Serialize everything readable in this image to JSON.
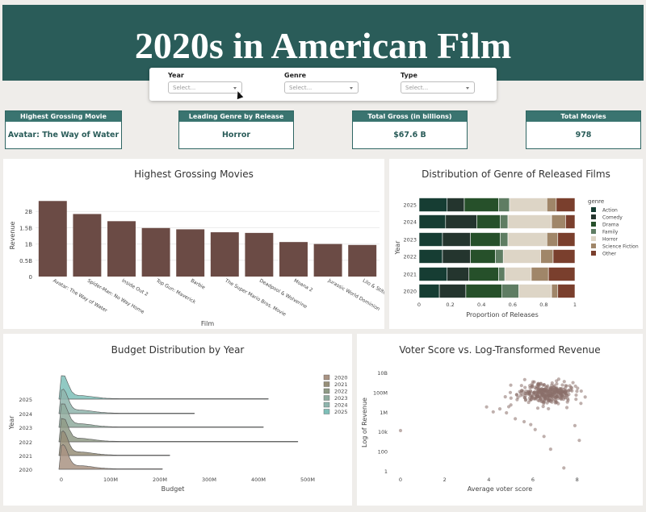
{
  "header": {
    "title": "2020s in American Film"
  },
  "filters": [
    {
      "label": "Year",
      "placeholder": "Select..."
    },
    {
      "label": "Genre",
      "placeholder": "Select..."
    },
    {
      "label": "Type",
      "placeholder": "Select..."
    }
  ],
  "cards": [
    {
      "title": "Highest Grossing Movie",
      "value": "Avatar: The Way of Water"
    },
    {
      "title": "Leading Genre by Release Count",
      "value": "Horror"
    },
    {
      "title": "Total Gross (in billions)",
      "value": "$67.6 B"
    },
    {
      "title": "Total Movies",
      "value": "978"
    }
  ],
  "colors": {
    "header": "#2a5c59",
    "bar": "#6b4b45"
  },
  "chart_data": [
    {
      "type": "bar",
      "title": "Highest Grossing Movies",
      "xlabel": "Film",
      "ylabel": "Revenue",
      "categories": [
        "Avatar: The Way of Water",
        "Spider-Man: No Way Home",
        "Inside Out 2",
        "Top Gun: Maverick",
        "Barbie",
        "The Super Mario Bros. Movie",
        "Deadpool & Wolverine",
        "Moana 2",
        "Jurassic World Dominion",
        "Lilo & Stitch"
      ],
      "values": [
        2.32,
        1.92,
        1.7,
        1.49,
        1.45,
        1.36,
        1.34,
        1.06,
        1.0,
        0.97
      ],
      "value_unit": "billions",
      "yticks": [
        "0",
        "0.5B",
        "1B",
        "1.5B",
        "2B"
      ],
      "ylim": [
        0,
        2.5
      ]
    },
    {
      "type": "bar",
      "stacked": true,
      "orientation": "horizontal",
      "title": "Distribution of Genre of Released Films",
      "xlabel": "Proportion of Releases",
      "ylabel": "Year",
      "legend_title": "genre",
      "categories": [
        "2020",
        "2021",
        "2022",
        "2023",
        "2024",
        "2025"
      ],
      "series": [
        {
          "name": "Action",
          "color": "#163d33",
          "values": [
            0.13,
            0.18,
            0.15,
            0.15,
            0.17,
            0.18
          ]
        },
        {
          "name": "Comedy",
          "color": "#24352e",
          "values": [
            0.17,
            0.14,
            0.18,
            0.18,
            0.2,
            0.11
          ]
        },
        {
          "name": "Drama",
          "color": "#26502a",
          "values": [
            0.23,
            0.19,
            0.16,
            0.19,
            0.15,
            0.22
          ]
        },
        {
          "name": "Family",
          "color": "#5f7d63",
          "values": [
            0.11,
            0.04,
            0.05,
            0.05,
            0.05,
            0.07
          ]
        },
        {
          "name": "Horror",
          "color": "#ddd5c6",
          "values": [
            0.21,
            0.17,
            0.24,
            0.25,
            0.28,
            0.24
          ]
        },
        {
          "name": "Science Fiction",
          "color": "#a08669",
          "values": [
            0.04,
            0.11,
            0.08,
            0.07,
            0.09,
            0.06
          ]
        },
        {
          "name": "Other",
          "color": "#7a3f2d",
          "values": [
            0.11,
            0.17,
            0.14,
            0.11,
            0.06,
            0.12
          ]
        }
      ],
      "xticks": [
        "0",
        "0.2",
        "0.4",
        "0.6",
        "0.8",
        "1"
      ],
      "xlim": [
        0,
        1
      ]
    },
    {
      "type": "area",
      "title": "Budget Distribution by Year",
      "xlabel": "Budget",
      "ylabel": "Year",
      "categories": [
        "2020",
        "2021",
        "2022",
        "2023",
        "2024",
        "2025"
      ],
      "series": [
        {
          "name": "2020",
          "color": "#a99383",
          "max": 205
        },
        {
          "name": "2021",
          "color": "#968e78",
          "max": 220
        },
        {
          "name": "2022",
          "color": "#8f9a86",
          "max": 480
        },
        {
          "name": "2023",
          "color": "#8fab9e",
          "max": 410
        },
        {
          "name": "2024",
          "color": "#8fb5ad",
          "max": 270
        },
        {
          "name": "2025",
          "color": "#7ebfb8",
          "max": 420
        }
      ],
      "xticks": [
        "0",
        "100M",
        "200M",
        "300M",
        "400M",
        "500M"
      ],
      "xlim": [
        0,
        500
      ],
      "x_unit": "millions"
    },
    {
      "type": "scatter",
      "title": "Voter Score vs. Log-Transformed Revenue",
      "xlabel": "Average voter score",
      "ylabel": "Log of Revenue",
      "xticks": [
        "0",
        "2",
        "4",
        "6",
        "8"
      ],
      "yticks": [
        "1",
        "100",
        "10k",
        "1M",
        "100M",
        "10B"
      ],
      "xlim": [
        0,
        9
      ],
      "ylim": [
        0,
        10
      ],
      "color": "#8a6f6a"
    }
  ]
}
